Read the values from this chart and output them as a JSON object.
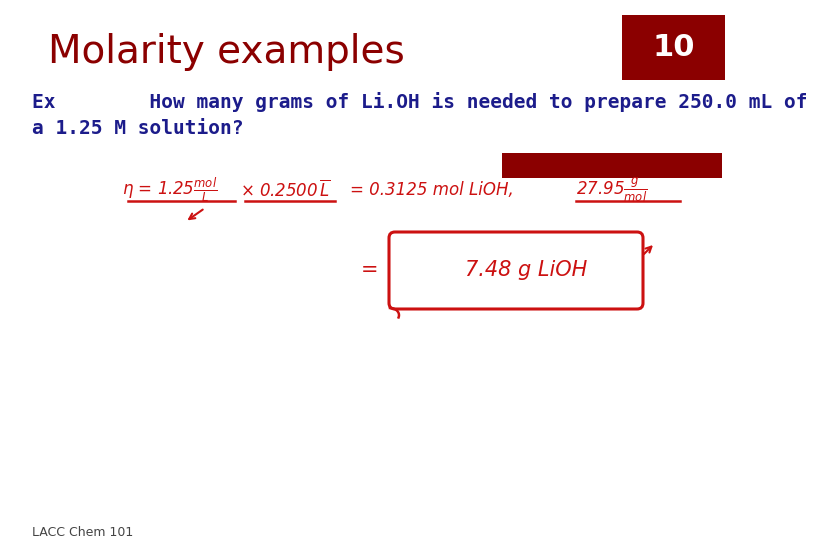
{
  "title": "Molarity examples",
  "slide_number": "10",
  "title_color": "#8B0000",
  "slide_num_bg": "#8B0000",
  "slide_num_text_color": "#FFFFFF",
  "body_text_color": "#1C1C8B",
  "question_line1": "Ex        How many grams of Li.OH is needed to prepare 250.0 mL of",
  "question_line2": "a 1.25 M solution?",
  "footer": "LACC Chem 101",
  "bg_color": "#FFFFFF",
  "handwriting_color": "#CC1111",
  "highlight_bar_color": "#8B0000",
  "title_font_size": 28,
  "number_font_size": 22,
  "body_font_size": 14,
  "footer_font_size": 9
}
